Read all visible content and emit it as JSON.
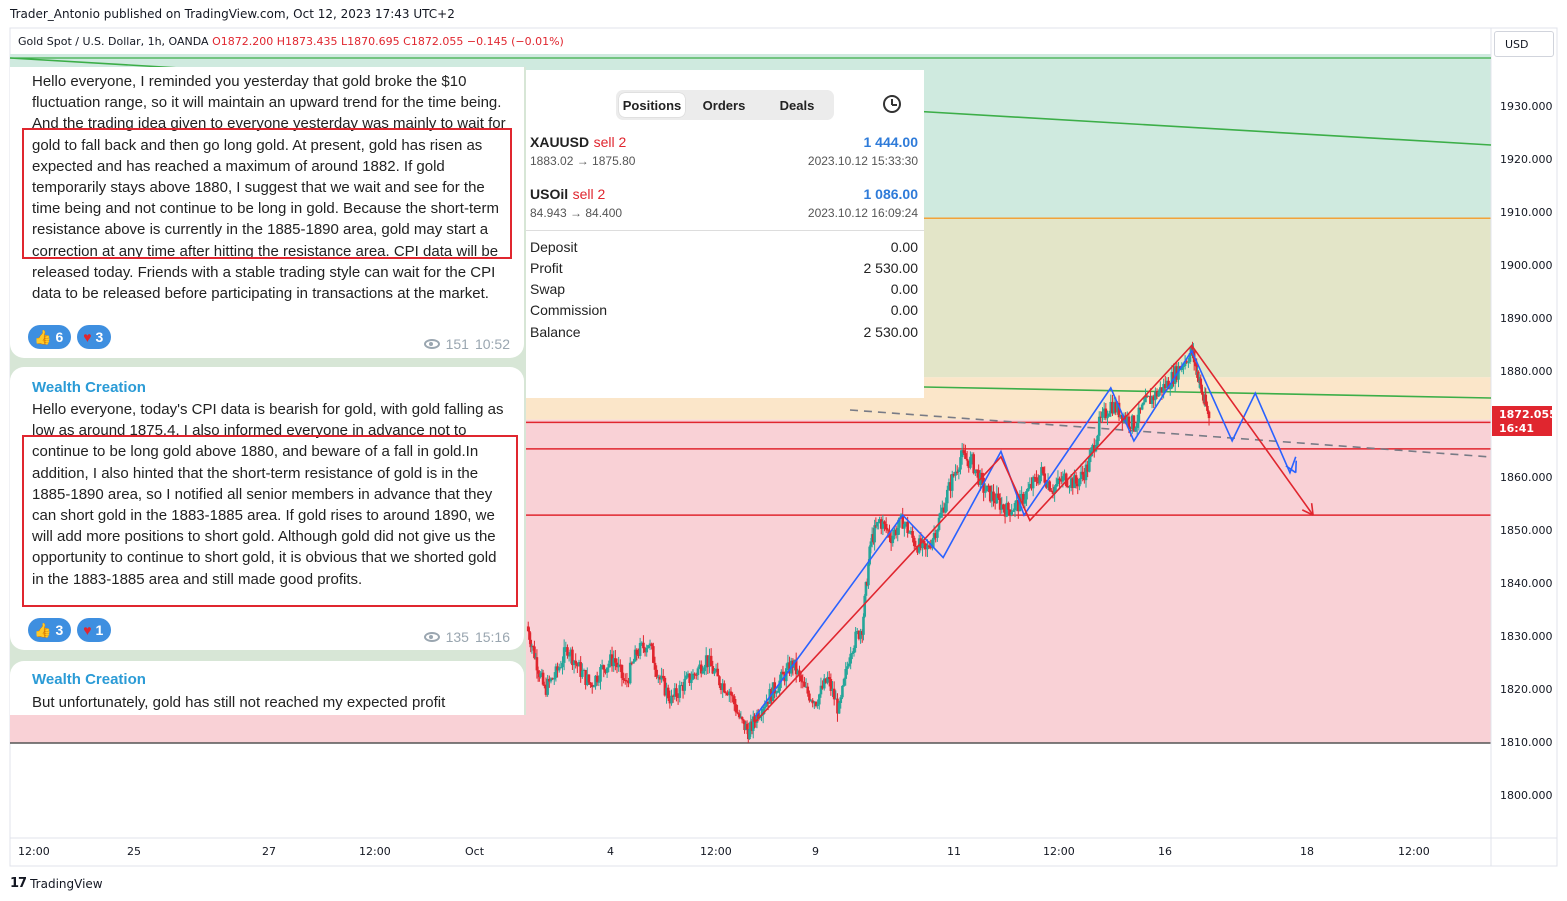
{
  "publisher_line": "Trader_Antonio published on TradingView.com, Oct 12, 2023 17:43 UTC+2",
  "legend": {
    "symbol": "Gold Spot / U.S. Dollar, 1h, OANDA",
    "open_label": "O",
    "open": "1872.200",
    "high_label": "H",
    "high": "1873.435",
    "low_label": "L",
    "low": "1870.695",
    "close_label": "C",
    "close": "1872.055",
    "change": "−0.145 (−0.01%)"
  },
  "currency_button": "USD",
  "last_price_tag": {
    "price": "1872.055",
    "countdown": "16:41"
  },
  "footer_brand": "TradingView",
  "colors": {
    "up": "#26a69a",
    "down": "#e0262f",
    "blue_path": "#2962ff",
    "red_path": "#e0262f",
    "green_zone": "#cfeadf",
    "red_zone": "#f9d1d6",
    "orange_zone": "#fbe6c9"
  },
  "chart_data": {
    "type": "candlestick",
    "timeframe": "1h",
    "ylim": [
      1795,
      1940
    ],
    "y_ticks": [
      "1930.000",
      "1920.000",
      "1910.000",
      "1900.000",
      "1890.000",
      "1880.000",
      "1870.000",
      "1860.000",
      "1850.000",
      "1840.000",
      "1830.000",
      "1820.000",
      "1810.000",
      "1800.000"
    ],
    "x_ticks": [
      "12:00",
      "25",
      "27",
      "12:00",
      "Oct",
      "4",
      "12:00",
      "9",
      "11",
      "12:00",
      "16",
      "18",
      "12:00"
    ],
    "price_path": [
      [
        0,
        1832
      ],
      [
        0.03,
        1826
      ],
      [
        0.06,
        1820
      ],
      [
        0.1,
        1823
      ],
      [
        0.14,
        1828
      ],
      [
        0.18,
        1824
      ],
      [
        0.22,
        1821
      ],
      [
        0.26,
        1824
      ],
      [
        0.3,
        1826
      ],
      [
        0.34,
        1821
      ],
      [
        0.38,
        1827
      ],
      [
        0.42,
        1829
      ],
      [
        0.46,
        1822
      ],
      [
        0.5,
        1818
      ],
      [
        0.54,
        1821
      ],
      [
        0.58,
        1823
      ],
      [
        0.62,
        1826
      ],
      [
        0.66,
        1822
      ],
      [
        0.7,
        1820
      ],
      [
        0.74,
        1814
      ],
      [
        0.77,
        1812
      ],
      [
        0.8,
        1816
      ],
      [
        0.84,
        1819
      ],
      [
        0.88,
        1822
      ],
      [
        0.92,
        1825
      ],
      [
        0.96,
        1820
      ],
      [
        1.0,
        1818
      ],
      [
        1.04,
        1822
      ],
      [
        1.08,
        1816
      ],
      [
        1.12,
        1828
      ],
      [
        1.16,
        1832
      ],
      [
        1.19,
        1848
      ],
      [
        1.22,
        1852
      ],
      [
        1.26,
        1849
      ],
      [
        1.3,
        1852
      ],
      [
        1.34,
        1848
      ],
      [
        1.38,
        1846
      ],
      [
        1.42,
        1851
      ],
      [
        1.46,
        1858
      ],
      [
        1.5,
        1864
      ],
      [
        1.54,
        1863
      ],
      [
        1.58,
        1858
      ],
      [
        1.62,
        1856
      ],
      [
        1.66,
        1854
      ],
      [
        1.7,
        1855
      ],
      [
        1.74,
        1858
      ],
      [
        1.78,
        1861
      ],
      [
        1.82,
        1858
      ],
      [
        1.86,
        1860
      ],
      [
        1.9,
        1859
      ],
      [
        1.94,
        1862
      ],
      [
        1.98,
        1870
      ],
      [
        2.02,
        1874
      ],
      [
        2.06,
        1872
      ],
      [
        2.1,
        1870
      ],
      [
        2.14,
        1874
      ],
      [
        2.18,
        1876
      ],
      [
        2.22,
        1878
      ],
      [
        2.26,
        1881
      ],
      [
        2.3,
        1884
      ],
      [
        2.32,
        1880
      ],
      [
        2.34,
        1875
      ],
      [
        2.36,
        1872
      ]
    ],
    "horizontal_lines": [
      {
        "price": 1909,
        "color": "#f2a33a"
      },
      {
        "price": 1870.5,
        "color": "#e0262f"
      },
      {
        "price": 1865.5,
        "color": "#e0262f"
      },
      {
        "price": 1853,
        "color": "#e0262f"
      },
      {
        "price": 1810,
        "color": "#555555"
      }
    ],
    "zones": [
      {
        "from": 1909,
        "to": 1940,
        "color": "green"
      },
      {
        "from": 1879,
        "to": 1909,
        "color": "olive"
      },
      {
        "from": 1871,
        "to": 1879,
        "color": "orange"
      },
      {
        "from": 1810,
        "to": 1871,
        "color": "red"
      }
    ],
    "blue_forecast": [
      [
        0.79,
        1815
      ],
      [
        1.3,
        1853
      ],
      [
        1.44,
        1845
      ],
      [
        1.64,
        1865
      ],
      [
        1.72,
        1853
      ],
      [
        2.02,
        1877
      ],
      [
        2.1,
        1867
      ],
      [
        2.3,
        1884
      ],
      [
        2.44,
        1867
      ],
      [
        2.52,
        1876
      ],
      [
        2.64,
        1861
      ],
      [
        2.66,
        1864
      ]
    ],
    "red_forecast": [
      [
        0.79,
        1814
      ],
      [
        1.64,
        1864
      ],
      [
        1.74,
        1852
      ],
      [
        2.3,
        1885
      ],
      [
        2.72,
        1853
      ]
    ]
  },
  "telegram": {
    "msg1": {
      "text": "Hello everyone, I reminded you yesterday that gold broke the $10 fluctuation range, so it will maintain an upward trend for the time being. And the trading idea given to everyone yesterday was mainly to wait for gold to fall back and then go long gold. At present, gold has risen as expected and has reached a maximum of around 1882. If gold temporarily stays above 1880, I suggest that we wait and see for the time being and not continue to be long in gold. Because the short-term resistance above is currently in the 1885-1890 area, gold may start a correction at any time after hitting the resistance area. CPI data will be released today. Friends with a stable trading style can wait for the CPI data to be released before participating in transactions at the market.",
      "likes": "6",
      "hearts": "3",
      "views": "151",
      "time": "10:52"
    },
    "msg2": {
      "author": "Wealth Creation",
      "text": "Hello everyone, today's CPI data is bearish for gold, with gold falling as low as around 1875.4. I also informed everyone in advance not to continue to be long gold above 1880, and beware of a fall in gold.In addition, I also hinted that the short-term resistance of gold is in the 1885-1890 area, so I notified all senior members in advance that they can short gold in the 1883-1885 area. If gold rises to around 1890, we will add more positions to short gold. Although gold did not give us the opportunity to continue to short gold, it is obvious that we shorted gold in the 1883-1885 area and still made good profits.",
      "likes": "3",
      "hearts": "1",
      "views": "135",
      "time": "15:16"
    },
    "msg3": {
      "author": "Wealth Creation",
      "text": "But unfortunately, gold has still not reached my expected profit"
    }
  },
  "positions": {
    "tabs": [
      "Positions",
      "Orders",
      "Deals"
    ],
    "rows": [
      {
        "symbol": "XAUUSD",
        "side": "sell 2",
        "profit": "1 444.00",
        "prices": "1883.02 → 1875.80",
        "time": "2023.10.12 15:33:30"
      },
      {
        "symbol": "USOil",
        "side": "sell 2",
        "profit": "1 086.00",
        "prices": "84.943 → 84.400",
        "time": "2023.10.12 16:09:24"
      }
    ],
    "summary": [
      {
        "label": "Deposit",
        "value": "0.00"
      },
      {
        "label": "Profit",
        "value": "2 530.00"
      },
      {
        "label": "Swap",
        "value": "0.00"
      },
      {
        "label": "Commission",
        "value": "0.00"
      },
      {
        "label": "Balance",
        "value": "2 530.00"
      }
    ]
  }
}
